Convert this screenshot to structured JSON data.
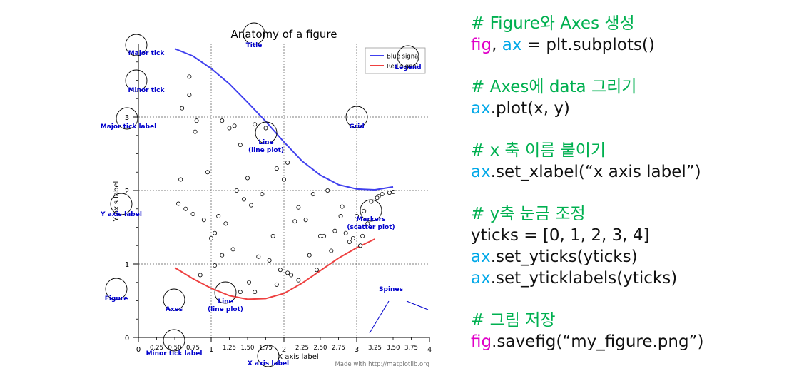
{
  "colors": {
    "blue_line": "#4040ee",
    "red_line": "#ee4040",
    "annotation": "#0000cc",
    "comment": "#00b050",
    "fig_keyword": "#e000c8",
    "ax_keyword": "#00a8e8"
  },
  "chart_data": {
    "type": "line",
    "title": "Anatomy of a figure",
    "xlabel": "X axis label",
    "ylabel": "Y axis label",
    "xlim": [
      0,
      4
    ],
    "ylim": [
      0,
      4
    ],
    "x_major_ticks": [
      "0",
      "1",
      "2",
      "3",
      "4"
    ],
    "y_major_ticks": [
      "0",
      "1",
      "2",
      "3"
    ],
    "x_minor_ticks": [
      "0.25",
      "0.50",
      "0.75",
      "1.25",
      "1.50",
      "1.75",
      "2.25",
      "2.50",
      "2.75",
      "3.25",
      "3.50",
      "3.75"
    ],
    "grid": true,
    "legend_placement": "top-right",
    "series": [
      {
        "name": "Blue signal",
        "color": "#4040ee",
        "x": [
          0.5,
          0.75,
          1.0,
          1.25,
          1.5,
          1.75,
          2.0,
          2.25,
          2.5,
          2.75,
          3.0,
          3.25,
          3.5
        ],
        "y": [
          3.93,
          3.83,
          3.66,
          3.45,
          3.2,
          2.94,
          2.66,
          2.4,
          2.21,
          2.08,
          2.02,
          2.01,
          2.05
        ]
      },
      {
        "name": "Red signal",
        "color": "#ee4040",
        "x": [
          0.5,
          0.75,
          1.0,
          1.25,
          1.5,
          1.75,
          2.0,
          2.25,
          2.5,
          2.75,
          3.0,
          3.25
        ],
        "y": [
          0.95,
          0.8,
          0.67,
          0.57,
          0.52,
          0.53,
          0.6,
          0.74,
          0.91,
          1.08,
          1.22,
          1.34
        ]
      }
    ],
    "scatter": {
      "name": "Markers",
      "x": [
        0.6,
        0.7,
        0.8,
        0.95,
        1.05,
        1.25,
        1.4,
        1.5,
        1.6,
        1.75,
        1.9,
        2.05,
        2.2,
        2.4,
        2.6,
        2.8,
        3.0,
        3.1,
        3.2,
        3.35,
        3.45,
        0.55,
        0.65,
        0.75,
        0.9,
        1.1,
        1.2,
        1.35,
        1.45,
        1.55,
        1.7,
        1.85,
        2.0,
        2.15,
        2.3,
        2.5,
        2.7,
        2.9,
        3.05,
        3.15,
        3.3,
        3.5,
        0.85,
        1.0,
        1.15,
        1.3,
        1.65,
        1.8,
        1.95,
        2.1,
        2.35,
        2.45,
        2.55,
        2.65,
        2.85,
        2.95,
        1.05,
        1.4,
        1.6,
        1.9,
        2.2,
        0.7,
        0.78,
        1.15,
        1.32,
        0.58,
        1.52,
        2.05,
        2.78,
        3.08,
        3.28
      ],
      "y": [
        3.12,
        3.3,
        2.95,
        2.25,
        1.42,
        2.85,
        2.62,
        2.17,
        2.9,
        2.85,
        2.3,
        2.38,
        1.77,
        1.95,
        2.0,
        1.78,
        1.65,
        1.72,
        1.85,
        1.95,
        1.97,
        1.82,
        1.75,
        1.68,
        1.6,
        1.65,
        1.55,
        2.0,
        1.88,
        1.8,
        1.95,
        1.38,
        2.15,
        1.58,
        1.6,
        1.38,
        1.45,
        1.3,
        1.25,
        1.55,
        1.92,
        1.98,
        0.85,
        1.35,
        1.12,
        1.2,
        1.1,
        1.05,
        0.92,
        0.85,
        1.12,
        0.92,
        1.38,
        1.18,
        1.42,
        1.35,
        0.98,
        0.62,
        0.62,
        0.72,
        0.78,
        3.55,
        2.8,
        2.95,
        2.88,
        2.15,
        0.75,
        0.88,
        1.65,
        1.38,
        1.9
      ]
    },
    "annotations": [
      {
        "text": "Major tick",
        "lines": [
          "Major tick"
        ]
      },
      {
        "text": "Minor tick",
        "lines": [
          "Minor tick"
        ]
      },
      {
        "text": "Major tick label",
        "lines": [
          "Major tick label"
        ]
      },
      {
        "text": "Title",
        "lines": [
          "Title"
        ]
      },
      {
        "text": "Legend",
        "lines": [
          "Legend"
        ]
      },
      {
        "text": "Grid",
        "lines": [
          "Grid"
        ]
      },
      {
        "text": "Line (line plot)",
        "lines": [
          "Line",
          "(line plot)"
        ]
      },
      {
        "text": "Y axis label",
        "lines": [
          "Y axis label"
        ]
      },
      {
        "text": "Markers (scatter plot)",
        "lines": [
          "Markers",
          "(scatter plot)"
        ]
      },
      {
        "text": "Figure",
        "lines": [
          "Figure"
        ]
      },
      {
        "text": "Axes",
        "lines": [
          "Axes"
        ]
      },
      {
        "text": "Line (line plot)",
        "lines": [
          "Line",
          "(line plot)"
        ]
      },
      {
        "text": "Spines",
        "lines": [
          "Spines"
        ]
      },
      {
        "text": "Minor tick label",
        "lines": [
          "Minor tick label"
        ]
      },
      {
        "text": "X axis label",
        "lines": [
          "X axis label"
        ]
      }
    ],
    "footer": "Made with http://matplotlib.org"
  },
  "code": {
    "comment1": "# Figure와 Axes 생성",
    "line1": {
      "fig": "fig",
      "sep": ", ",
      "ax": "ax",
      "rest": " = plt.subplots()"
    },
    "comment2": "# Axes에 data 그리기",
    "line2": {
      "ax": "ax",
      "rest": ".plot(x, y)"
    },
    "comment3": "# x 축 이름 붙이기",
    "line3": {
      "ax": "ax",
      "rest": ".set_xlabel(“x axis label”)"
    },
    "comment4": "# y축 눈금 조정",
    "line4a": "yticks = [0, 1, 2, 3, 4]",
    "line4b": {
      "ax": "ax",
      "rest": ".set_yticks(yticks)"
    },
    "line4c": {
      "ax": "ax",
      "rest": ".set_yticklabels(yticks)"
    },
    "comment5": "# 그림 저장",
    "line5": {
      "fig": "fig",
      "rest": ".savefig(“my_figure.png”)"
    }
  }
}
